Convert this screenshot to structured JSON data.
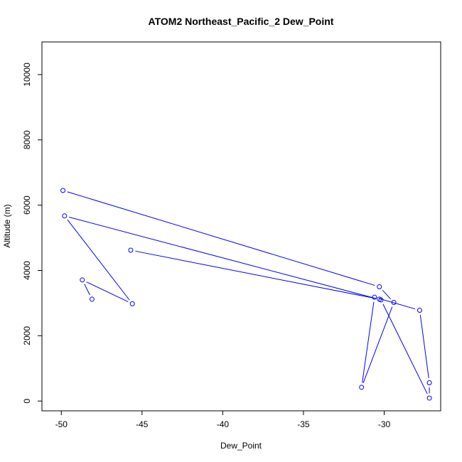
{
  "chart_data": {
    "type": "line",
    "title": "ATOM2 Northeast_Pacific_2 Dew_Point",
    "xlabel": "Dew_Point",
    "ylabel": "Altitude (m)",
    "xlim": [
      -51.2,
      -26.5
    ],
    "ylim": [
      -300,
      11000
    ],
    "xticks": [
      -50,
      -45,
      -40,
      -35,
      -30
    ],
    "yticks": [
      0,
      2000,
      4000,
      6000,
      8000,
      10000
    ],
    "grid": false,
    "series": [
      {
        "color": "#0000ff",
        "points": [
          {
            "x": -49.9,
            "y": 6450
          },
          {
            "x": -30.3,
            "y": 3500
          },
          {
            "x": -29.4,
            "y": 3020
          },
          {
            "x": -31.4,
            "y": 420
          },
          {
            "x": -30.6,
            "y": 3180
          },
          {
            "x": -27.8,
            "y": 2780
          },
          {
            "x": -27.2,
            "y": 560
          },
          {
            "x": -27.2,
            "y": 90
          },
          {
            "x": -30.2,
            "y": 3100
          },
          {
            "x": -49.8,
            "y": 5670
          },
          {
            "x": -45.6,
            "y": 2980
          },
          {
            "x": -48.7,
            "y": 3710
          },
          {
            "x": -48.1,
            "y": 3120
          }
        ]
      },
      {
        "color": "#0000ff",
        "points": [
          {
            "x": -45.7,
            "y": 4620
          },
          {
            "x": -30.3,
            "y": 3120
          }
        ]
      }
    ]
  }
}
